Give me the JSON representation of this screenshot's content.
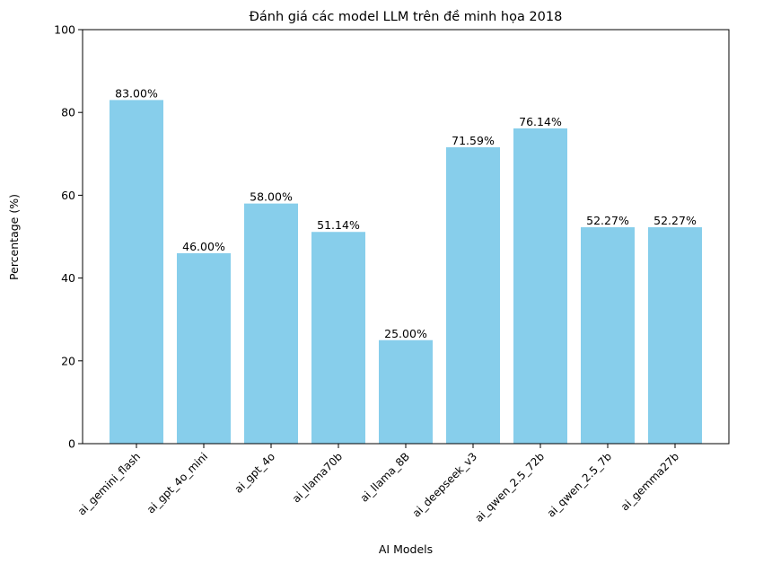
{
  "chart_data": {
    "type": "bar",
    "title": "Đánh giá các model LLM trên đề minh họa 2018",
    "xlabel": "AI Models",
    "ylabel": "Percentage (%)",
    "ylim": [
      0,
      100
    ],
    "yticks": [
      0,
      20,
      40,
      60,
      80,
      100
    ],
    "grid": false,
    "bar_color": "#87CEEB",
    "categories": [
      "ai_gemini_flash",
      "ai_gpt_4o_mini",
      "ai_gpt_4o",
      "ai_llama70b",
      "ai_llama_8B",
      "ai_deepseek_v3",
      "ai_qwen_2.5_72b",
      "ai_qwen_2.5_7b",
      "ai_gemma27b"
    ],
    "values": [
      83.0,
      46.0,
      58.0,
      51.14,
      25.0,
      71.59,
      76.14,
      52.27,
      52.27
    ],
    "data_labels": [
      "83.00%",
      "46.00%",
      "58.00%",
      "51.14%",
      "25.00%",
      "71.59%",
      "76.14%",
      "52.27%",
      "52.27%"
    ]
  }
}
